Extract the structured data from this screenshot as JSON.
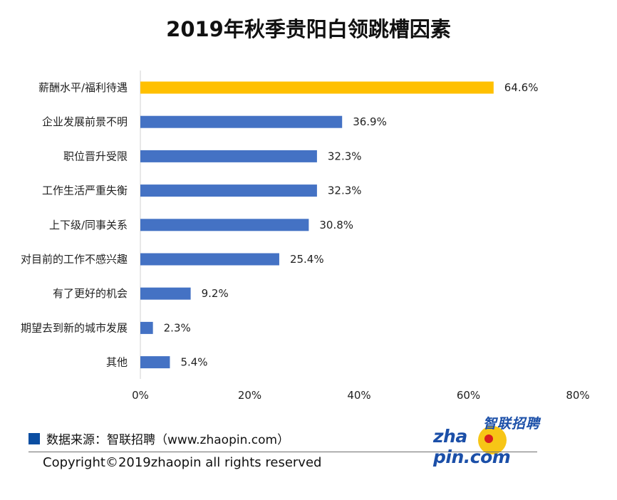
{
  "chart_data": {
    "type": "bar",
    "orientation": "horizontal",
    "title": "2019年秋季贵阳白领跳槽因素",
    "categories": [
      "薪酬水平/福利待遇",
      "企业发展前景不明",
      "职位晋升受限",
      "工作生活严重失衡",
      "上下级/同事关系",
      "对目前的工作不感兴趣",
      "有了更好的机会",
      "期望去到新的城市发展",
      "其他"
    ],
    "values": [
      64.6,
      36.9,
      32.3,
      32.3,
      30.8,
      25.4,
      9.2,
      2.3,
      5.4
    ],
    "value_labels": [
      "64.6%",
      "36.9%",
      "32.3%",
      "32.3%",
      "30.8%",
      "25.4%",
      "9.2%",
      "2.3%",
      "5.4%"
    ],
    "xlim": [
      0,
      80
    ],
    "xticks": [
      0,
      20,
      40,
      60,
      80
    ],
    "xtick_labels": [
      "0%",
      "20%",
      "40%",
      "60%",
      "80%"
    ],
    "grid": false,
    "bar_color": "#4472c4",
    "highlight_color": "#ffc000",
    "highlight_index": 0
  },
  "source": "数据来源：智联招聘（www.zhaopin.com）",
  "copyright": "Copyright©2019zhaopin all rights reserved",
  "logo": {
    "cn": "智联招聘",
    "en_part1": "zha",
    "en_part2": "pin.com",
    "text_color": "#1b4fa8",
    "ball_color": "#f7c516",
    "dot_color": "#d81e1e"
  }
}
